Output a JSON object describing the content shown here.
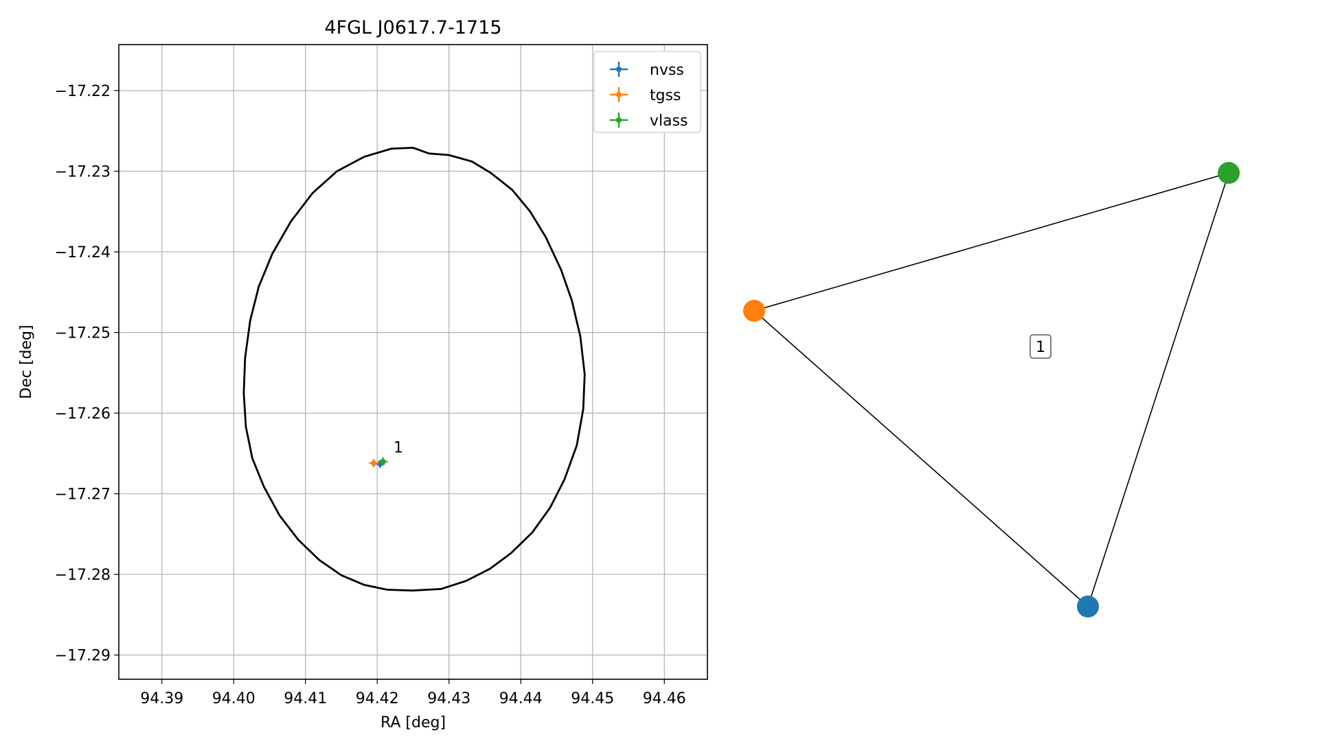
{
  "chart_data": [
    {
      "type": "scatter",
      "title": "4FGL J0617.7-1715",
      "xlabel": "RA [deg]",
      "ylabel": "Dec [deg]",
      "xlim": [
        94.384,
        94.466
      ],
      "ylim": [
        -17.293,
        -17.2143
      ],
      "grid": true,
      "legend_position": "top-right",
      "xticks": [
        94.39,
        94.4,
        94.41,
        94.42,
        94.43,
        94.44,
        94.45,
        94.46
      ],
      "xtick_labels": [
        "94.39",
        "94.40",
        "94.41",
        "94.42",
        "94.43",
        "94.44",
        "94.45",
        "94.46"
      ],
      "yticks": [
        -17.22,
        -17.23,
        -17.24,
        -17.25,
        -17.26,
        -17.27,
        -17.28,
        -17.29
      ],
      "ytick_labels": [
        "−17.22",
        "−17.23",
        "−17.24",
        "−17.25",
        "−17.26",
        "−17.27",
        "−17.28",
        "−17.29"
      ],
      "series": [
        {
          "name": "nvss",
          "color": "#1f77b4",
          "x": [
            94.4204
          ],
          "y": [
            -17.2663
          ]
        },
        {
          "name": "tgss",
          "color": "#ff7f0e",
          "x": [
            94.4195
          ],
          "y": [
            -17.2662
          ]
        },
        {
          "name": "vlass",
          "color": "#2ca02c",
          "x": [
            94.4208
          ],
          "y": [
            -17.266
          ]
        }
      ],
      "ellipse": {
        "color": "#000000",
        "center": [
          94.4252,
          -17.2537
        ],
        "points": [
          [
            94.4272,
            -17.2278
          ],
          [
            94.43,
            -17.228
          ],
          [
            94.4332,
            -17.2288
          ],
          [
            94.4358,
            -17.2302
          ],
          [
            94.4388,
            -17.2323
          ],
          [
            94.4413,
            -17.235
          ],
          [
            94.4435,
            -17.2382
          ],
          [
            94.4456,
            -17.2422
          ],
          [
            94.4471,
            -17.246
          ],
          [
            94.4483,
            -17.2505
          ],
          [
            94.4489,
            -17.2552
          ],
          [
            94.4487,
            -17.2595
          ],
          [
            94.4478,
            -17.264
          ],
          [
            94.4461,
            -17.2682
          ],
          [
            94.4441,
            -17.2717
          ],
          [
            94.4416,
            -17.2748
          ],
          [
            94.4386,
            -17.2774
          ],
          [
            94.4357,
            -17.2793
          ],
          [
            94.4324,
            -17.2808
          ],
          [
            94.4289,
            -17.2818
          ],
          [
            94.4249,
            -17.282
          ],
          [
            94.4214,
            -17.2819
          ],
          [
            94.4182,
            -17.2813
          ],
          [
            94.415,
            -17.2801
          ],
          [
            94.4119,
            -17.2782
          ],
          [
            94.409,
            -17.2757
          ],
          [
            94.4064,
            -17.2727
          ],
          [
            94.4042,
            -17.2691
          ],
          [
            94.4026,
            -17.2656
          ],
          [
            94.4017,
            -17.2617
          ],
          [
            94.4014,
            -17.2575
          ],
          [
            94.4016,
            -17.2531
          ],
          [
            94.4023,
            -17.2485
          ],
          [
            94.4035,
            -17.2443
          ],
          [
            94.4054,
            -17.2402
          ],
          [
            94.408,
            -17.2362
          ],
          [
            94.411,
            -17.2327
          ],
          [
            94.4144,
            -17.23
          ],
          [
            94.4182,
            -17.2282
          ],
          [
            94.422,
            -17.2272
          ],
          [
            94.425,
            -17.2271
          ],
          [
            94.4272,
            -17.2278
          ]
        ]
      },
      "annotations": [
        {
          "text": "1",
          "x": 94.4215,
          "y": -17.2642
        }
      ]
    },
    {
      "type": "network",
      "nodes": [
        {
          "name": "tgss",
          "color": "#ff7f0e"
        },
        {
          "name": "vlass",
          "color": "#2ca02c"
        },
        {
          "name": "nvss",
          "color": "#1f77b4"
        }
      ],
      "edges": [
        [
          "tgss",
          "vlass"
        ],
        [
          "vlass",
          "nvss"
        ],
        [
          "nvss",
          "tgss"
        ]
      ],
      "cycle_label": "1"
    }
  ]
}
